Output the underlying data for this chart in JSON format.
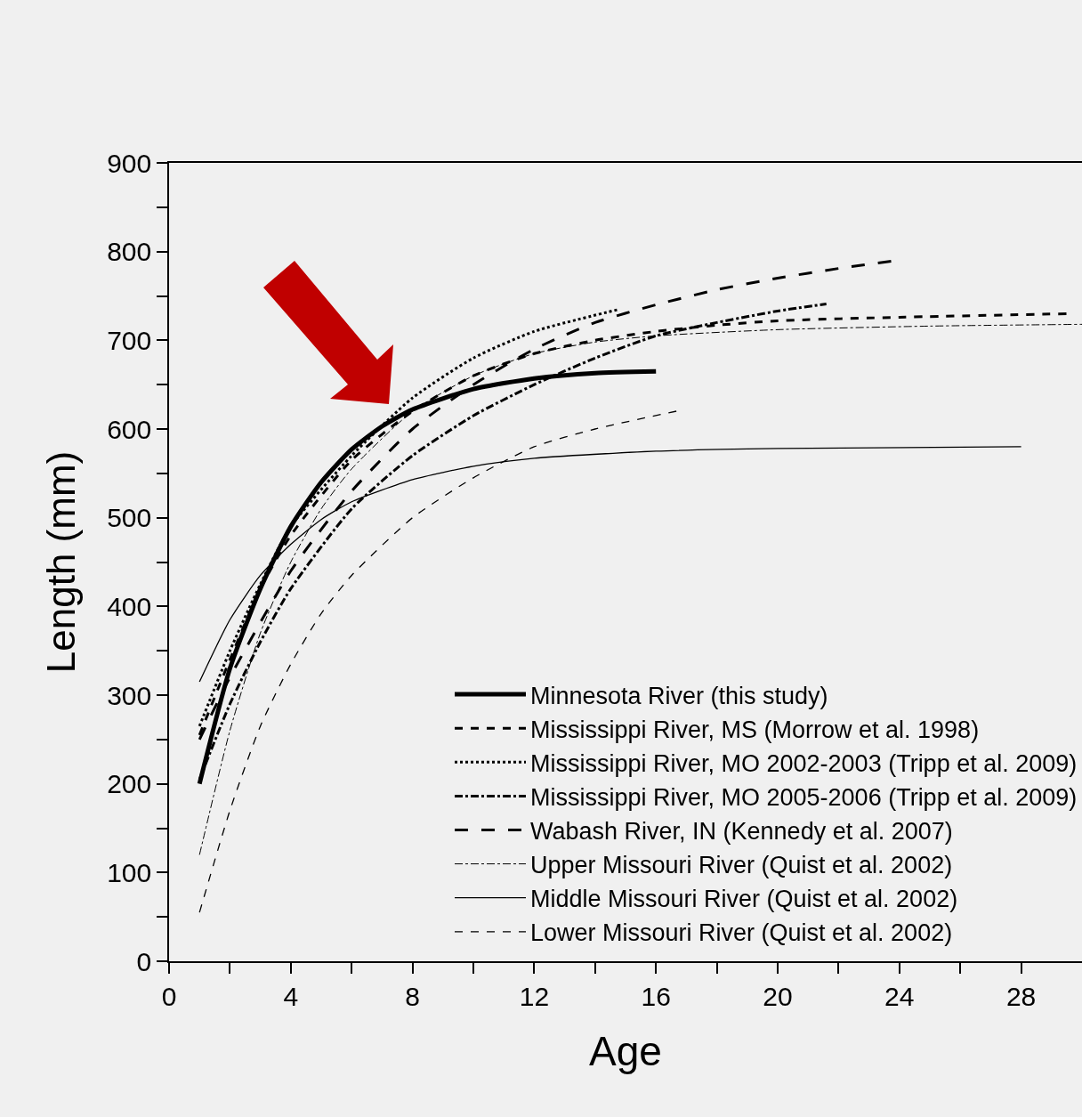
{
  "chart_data": {
    "type": "line",
    "xlabel": "Age",
    "ylabel": "Length (mm)",
    "xlim": [
      0,
      30
    ],
    "xticks": [
      0,
      {
        "value": 2,
        "label": null
      },
      4,
      {
        "value": 6,
        "label": null
      },
      8,
      {
        "value": 10,
        "label": null
      },
      12,
      {
        "value": 14,
        "label": null
      },
      16,
      {
        "value": 18,
        "label": null
      },
      20,
      {
        "value": 22,
        "label": null
      },
      24,
      {
        "value": 26,
        "label": null
      },
      28
    ],
    "ylim": [
      0,
      900
    ],
    "yticks": [
      0,
      {
        "value": 50,
        "label": null
      },
      100,
      {
        "value": 150,
        "label": null
      },
      200,
      {
        "value": 250,
        "label": null
      },
      300,
      {
        "value": 350,
        "label": null
      },
      400,
      {
        "value": 450,
        "label": null
      },
      500,
      {
        "value": 550,
        "label": null
      },
      600,
      {
        "value": 650,
        "label": null
      },
      700,
      {
        "value": 750,
        "label": null
      },
      800,
      {
        "value": 850,
        "label": null
      },
      900
    ],
    "grid": false,
    "legend": "bottom right",
    "marker": "none",
    "series": [
      {
        "name": "Minnesota River (this study)",
        "color": "#000000",
        "line_style": "solid",
        "x": [
          1,
          2,
          3,
          4,
          5,
          6,
          7,
          8,
          10,
          12,
          14,
          16
        ],
        "values": [
          200,
          330,
          420,
          490,
          540,
          577,
          603,
          622,
          645,
          657,
          663,
          665
        ]
      },
      {
        "name": "Mississippi River, MS (Morrow et al. 1998)",
        "color": "#000000",
        "line_style": "dashed",
        "x": [
          1,
          2,
          3,
          4,
          6,
          8,
          10,
          12,
          14,
          16,
          18,
          20,
          24,
          29.6
        ],
        "values": [
          255,
          340,
          420,
          480,
          565,
          620,
          660,
          685,
          700,
          710,
          717,
          722,
          726,
          730
        ]
      },
      {
        "name": "Mississippi River, MO 2002-2003 (Tripp et al. 2009)",
        "color": "#000000",
        "line_style": "dotted",
        "x": [
          1,
          2,
          3,
          4,
          6,
          8,
          10,
          12,
          14.8
        ],
        "values": [
          265,
          350,
          425,
          490,
          570,
          635,
          680,
          710,
          735
        ]
      },
      {
        "name": "Mississippi River, MO 2005-2006 (Tripp et al. 2009)",
        "color": "#000000",
        "line_style": "dashdot",
        "x": [
          1,
          2,
          3,
          4,
          6,
          8,
          10,
          12,
          14,
          16,
          18,
          20,
          21.6
        ],
        "values": [
          205,
          290,
          360,
          420,
          510,
          570,
          615,
          650,
          680,
          705,
          720,
          733,
          741
        ]
      },
      {
        "name": "Wabash River, IN (Kennedy et al. 2007)",
        "color": "#000000",
        "line_style": "longdash",
        "x": [
          1,
          2,
          4,
          6,
          8,
          10,
          12,
          14,
          16,
          18,
          20,
          22,
          23.9
        ],
        "values": [
          250,
          320,
          440,
          530,
          600,
          650,
          690,
          720,
          740,
          757,
          770,
          781,
          790
        ]
      },
      {
        "name": "Upper Missouri River (Quist et al. 2002)",
        "color": "#000000",
        "line_style": "dashdot",
        "x": [
          1,
          2,
          3,
          4,
          5,
          6,
          8,
          10,
          12,
          14,
          16,
          20,
          25,
          30
        ],
        "values": [
          120,
          260,
          370,
          450,
          510,
          555,
          620,
          660,
          685,
          698,
          705,
          712,
          716,
          718
        ]
      },
      {
        "name": "Middle Missouri River (Quist et al. 2002)",
        "color": "#000000",
        "line_style": "solid",
        "x": [
          1,
          2,
          3,
          4,
          5,
          6,
          8,
          10,
          12,
          16,
          20,
          28
        ],
        "values": [
          315,
          385,
          435,
          470,
          498,
          518,
          543,
          558,
          567,
          575,
          578,
          580
        ]
      },
      {
        "name": "Lower Missouri River (Quist et al. 2002)",
        "color": "#000000",
        "line_style": "dashed",
        "x": [
          1,
          2,
          3,
          4,
          5,
          6,
          8,
          10,
          12,
          14,
          16.8
        ],
        "values": [
          55,
          170,
          265,
          335,
          392,
          435,
          500,
          545,
          580,
          600,
          621
        ]
      }
    ]
  }
}
